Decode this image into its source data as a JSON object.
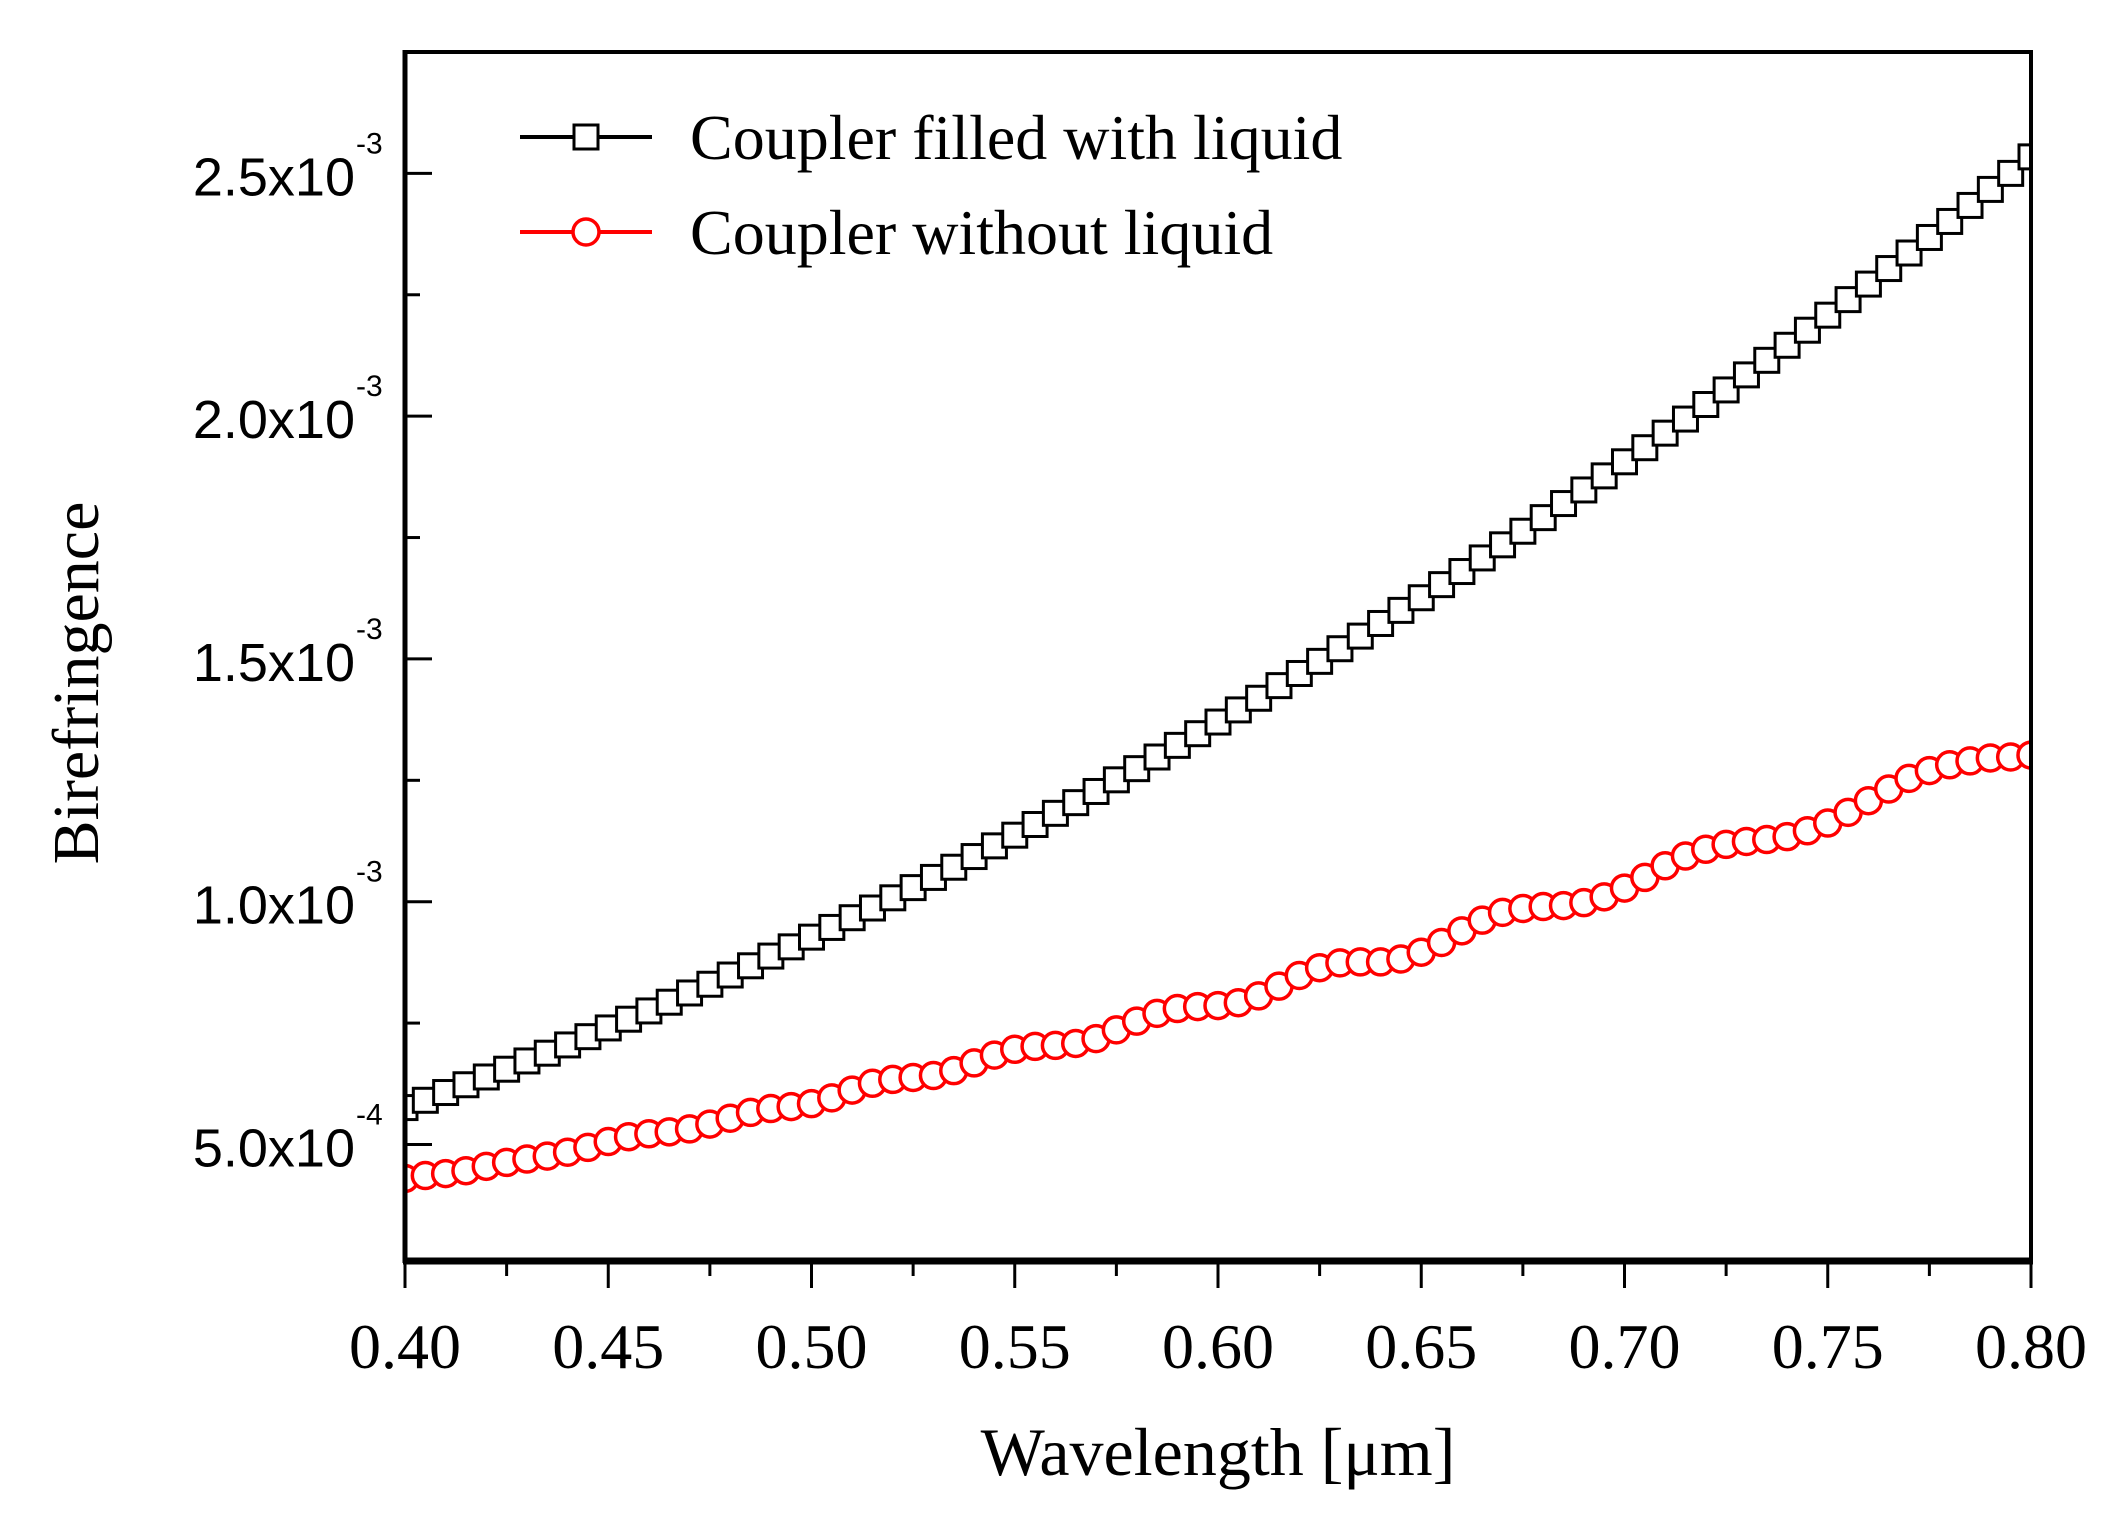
{
  "chart_data": {
    "type": "line",
    "title": "",
    "xlabel": "Wavelength [μm]",
    "ylabel": "Birefringence",
    "xlim": [
      0.4,
      0.8
    ],
    "ylim": [
      0.00026,
      0.00275
    ],
    "x_ticks": [
      0.4,
      0.45,
      0.5,
      0.55,
      0.6,
      0.65,
      0.7,
      0.75,
      0.8
    ],
    "x_tick_labels": [
      "0.40",
      "0.45",
      "0.50",
      "0.55",
      "0.60",
      "0.65",
      "0.70",
      "0.75",
      "0.80"
    ],
    "y_ticks": [
      0.0005,
      0.001,
      0.0015,
      0.002,
      0.0025
    ],
    "y_tick_labels": [
      {
        "mantissa": "5.0x10",
        "exponent": "-4"
      },
      {
        "mantissa": "1.0x10",
        "exponent": "-3"
      },
      {
        "mantissa": "1.5x10",
        "exponent": "-3"
      },
      {
        "mantissa": "2.0x10",
        "exponent": "-3"
      },
      {
        "mantissa": "2.5x10",
        "exponent": "-3"
      }
    ],
    "grid": false,
    "legend_position": "top-left",
    "x": [
      0.4,
      0.405,
      0.41,
      0.415,
      0.42,
      0.425,
      0.43,
      0.435,
      0.44,
      0.445,
      0.45,
      0.455,
      0.46,
      0.465,
      0.47,
      0.475,
      0.48,
      0.485,
      0.49,
      0.495,
      0.5,
      0.505,
      0.51,
      0.515,
      0.52,
      0.525,
      0.53,
      0.535,
      0.54,
      0.545,
      0.55,
      0.555,
      0.56,
      0.565,
      0.57,
      0.575,
      0.58,
      0.585,
      0.59,
      0.595,
      0.6,
      0.605,
      0.61,
      0.615,
      0.62,
      0.625,
      0.63,
      0.635,
      0.64,
      0.645,
      0.65,
      0.655,
      0.66,
      0.665,
      0.67,
      0.675,
      0.68,
      0.685,
      0.69,
      0.695,
      0.7,
      0.705,
      0.71,
      0.715,
      0.72,
      0.725,
      0.73,
      0.735,
      0.74,
      0.745,
      0.75,
      0.755,
      0.76,
      0.765,
      0.77,
      0.775,
      0.78,
      0.785,
      0.79,
      0.795,
      0.8
    ],
    "series": [
      {
        "name": "Coupler filled with liquid",
        "color": "#000000",
        "marker": "open-square",
        "values": [
          0.000576,
          0.000591,
          0.000607,
          0.000623,
          0.000639,
          0.000655,
          0.000672,
          0.000688,
          0.000705,
          0.000722,
          0.00074,
          0.000758,
          0.000775,
          0.000793,
          0.000812,
          0.00083,
          0.000849,
          0.000868,
          0.000888,
          0.000907,
          0.000927,
          0.000947,
          0.000967,
          0.000987,
          0.001008,
          0.001029,
          0.00105,
          0.001071,
          0.001093,
          0.001115,
          0.001137,
          0.001159,
          0.001182,
          0.001204,
          0.001227,
          0.001251,
          0.001274,
          0.001298,
          0.001322,
          0.001346,
          0.00137,
          0.001395,
          0.001419,
          0.001445,
          0.00147,
          0.001495,
          0.001521,
          0.001547,
          0.001573,
          0.0016,
          0.001626,
          0.001653,
          0.00168,
          0.001708,
          0.001735,
          0.001763,
          0.001791,
          0.00182,
          0.001848,
          0.001877,
          0.001906,
          0.001935,
          0.001965,
          0.001994,
          0.002024,
          0.002054,
          0.002085,
          0.002115,
          0.002146,
          0.002177,
          0.002208,
          0.00224,
          0.002272,
          0.002304,
          0.002336,
          0.002368,
          0.002401,
          0.002434,
          0.002467,
          0.0025,
          0.002534
        ]
      },
      {
        "name": "Coupler without liquid",
        "color": "#ff0000",
        "marker": "open-circle",
        "values": [
          0.00043,
          0.000436,
          0.00044,
          0.000446,
          0.000455,
          0.000463,
          0.00047,
          0.000476,
          0.000484,
          0.000494,
          0.000506,
          0.000516,
          0.000522,
          0.000526,
          0.000532,
          0.000542,
          0.000554,
          0.000566,
          0.000574,
          0.000578,
          0.000584,
          0.000596,
          0.000612,
          0.000626,
          0.000634,
          0.000638,
          0.000642,
          0.000652,
          0.000668,
          0.000684,
          0.000696,
          0.000702,
          0.000704,
          0.000708,
          0.000718,
          0.000736,
          0.000754,
          0.00077,
          0.00078,
          0.000784,
          0.000786,
          0.000792,
          0.000806,
          0.000826,
          0.000848,
          0.000864,
          0.000874,
          0.000876,
          0.000876,
          0.000882,
          0.000896,
          0.000916,
          0.00094,
          0.000962,
          0.000978,
          0.000986,
          0.00099,
          0.000992,
          0.000998,
          0.00101,
          0.001028,
          0.00105,
          0.001074,
          0.001094,
          0.001108,
          0.001118,
          0.001124,
          0.001128,
          0.001134,
          0.001146,
          0.001162,
          0.001184,
          0.001208,
          0.001232,
          0.001254,
          0.00127,
          0.001282,
          0.00129,
          0.001296,
          0.001298,
          0.001302
        ]
      }
    ]
  }
}
